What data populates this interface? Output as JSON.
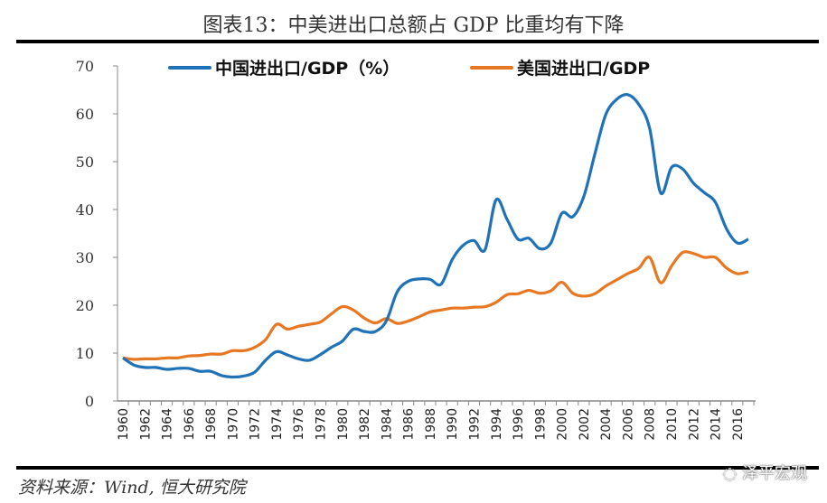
{
  "title": "图表13：中美进出口总额占 GDP 比重均有下降",
  "source": "资料来源：Wind, 恒大研究院",
  "watermark": "泽平宏观",
  "chart_data": {
    "type": "line",
    "title": "图表13：中美进出口总额占 GDP 比重均有下降",
    "xlabel": "",
    "ylabel": "",
    "ylim": [
      0,
      70
    ],
    "yticks": [
      0,
      10,
      20,
      30,
      40,
      50,
      60,
      70
    ],
    "xticks": [
      1960,
      1962,
      1964,
      1966,
      1968,
      1970,
      1972,
      1974,
      1976,
      1978,
      1980,
      1982,
      1984,
      1986,
      1988,
      1990,
      1992,
      1994,
      1996,
      1998,
      2000,
      2002,
      2004,
      2006,
      2008,
      2010,
      2012,
      2014,
      2016
    ],
    "grid": false,
    "legend": "top",
    "x": [
      1960,
      1961,
      1962,
      1963,
      1964,
      1965,
      1966,
      1967,
      1968,
      1969,
      1970,
      1971,
      1972,
      1973,
      1974,
      1975,
      1976,
      1977,
      1978,
      1979,
      1980,
      1981,
      1982,
      1983,
      1984,
      1985,
      1986,
      1987,
      1988,
      1989,
      1990,
      1991,
      1992,
      1993,
      1994,
      1995,
      1996,
      1997,
      1998,
      1999,
      2000,
      2001,
      2002,
      2003,
      2004,
      2005,
      2006,
      2007,
      2008,
      2009,
      2010,
      2011,
      2012,
      2013,
      2014,
      2015,
      2016,
      2017
    ],
    "series": [
      {
        "name": "中国进出口/GDP（%）",
        "color": "#1F72B8",
        "values": [
          9,
          7.5,
          7,
          7,
          6.6,
          6.8,
          6.8,
          6.2,
          6.2,
          5.3,
          5,
          5.2,
          6,
          8.5,
          10.3,
          9.6,
          8.8,
          8.5,
          9.7,
          11.2,
          12.5,
          15,
          14.5,
          14.5,
          16.7,
          22.8,
          25,
          25.5,
          25.4,
          24.4,
          29.5,
          32.5,
          33.5,
          31.6,
          42,
          38,
          33.8,
          34,
          31.8,
          33,
          39.2,
          38.5,
          42.7,
          51.5,
          59.8,
          63,
          64,
          62,
          57,
          43.5,
          48.8,
          48.5,
          45.5,
          43.5,
          41.5,
          36,
          33,
          33.8
        ]
      },
      {
        "name": "美国进出口/GDP",
        "color": "#E87722",
        "values": [
          9,
          8.7,
          8.8,
          8.8,
          9,
          9,
          9.4,
          9.5,
          9.8,
          9.8,
          10.5,
          10.5,
          11.2,
          12.8,
          16,
          15,
          15.6,
          16,
          16.5,
          18.2,
          19.7,
          19,
          17.3,
          16.3,
          17.2,
          16.2,
          16.7,
          17.6,
          18.6,
          19,
          19.4,
          19.4,
          19.6,
          19.7,
          20.6,
          22.2,
          22.4,
          23.1,
          22.5,
          23,
          24.8,
          22.5,
          21.9,
          22.4,
          24,
          25.3,
          26.6,
          27.7,
          30,
          24.7,
          28.2,
          31,
          30.8,
          30,
          30,
          27.8,
          26.6,
          27
        ]
      }
    ]
  }
}
